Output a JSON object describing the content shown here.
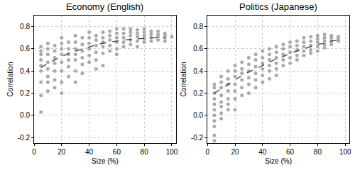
{
  "chart_data": [
    {
      "type": "scatter",
      "title": "Economy (English)",
      "x_label": "Size (%)",
      "y_label": "Correlation",
      "xlim": [
        0,
        103
      ],
      "xticks": [
        0,
        20,
        40,
        60,
        80,
        100
      ],
      "ylim": [
        -0.25,
        0.9
      ],
      "yticks": [
        -0.2,
        {
          "value": 0,
          "label": "0.0"
        },
        0.2,
        0.4,
        0.6,
        0.8
      ],
      "grid": true,
      "series": [
        {
          "type": "scatter",
          "marker": "circle",
          "color": "#aaaaaa",
          "x": [
            5,
            5,
            5,
            5,
            5,
            5,
            5,
            5,
            5,
            10,
            10,
            10,
            10,
            10,
            10,
            10,
            10,
            15,
            15,
            15,
            15,
            15,
            15,
            15,
            20,
            20,
            20,
            20,
            20,
            20,
            20,
            20,
            25,
            25,
            25,
            25,
            25,
            25,
            30,
            30,
            30,
            30,
            30,
            30,
            30,
            35,
            35,
            35,
            35,
            35,
            35,
            40,
            40,
            40,
            40,
            40,
            40,
            45,
            45,
            45,
            45,
            45,
            45,
            50,
            50,
            50,
            50,
            50,
            50,
            55,
            55,
            55,
            55,
            55,
            60,
            60,
            60,
            60,
            60,
            60,
            65,
            65,
            65,
            65,
            65,
            70,
            70,
            70,
            70,
            70,
            75,
            75,
            75,
            75,
            75,
            80,
            80,
            80,
            80,
            80,
            85,
            85,
            85,
            85,
            90,
            90,
            90,
            90,
            95,
            95,
            95,
            95,
            100
          ],
          "values": [
            0.62,
            0.58,
            0.55,
            0.5,
            0.45,
            0.4,
            0.3,
            0.18,
            0.03,
            0.65,
            0.6,
            0.55,
            0.48,
            0.42,
            0.35,
            0.3,
            0.22,
            0.63,
            0.58,
            0.52,
            0.47,
            0.4,
            0.32,
            0.25,
            0.7,
            0.65,
            0.6,
            0.55,
            0.48,
            0.4,
            0.3,
            0.2,
            0.66,
            0.6,
            0.55,
            0.5,
            0.44,
            0.35,
            0.72,
            0.66,
            0.6,
            0.55,
            0.5,
            0.4,
            0.3,
            0.7,
            0.64,
            0.58,
            0.52,
            0.46,
            0.38,
            0.75,
            0.7,
            0.65,
            0.6,
            0.54,
            0.48,
            0.72,
            0.68,
            0.63,
            0.57,
            0.5,
            0.42,
            0.75,
            0.7,
            0.66,
            0.62,
            0.56,
            0.45,
            0.76,
            0.72,
            0.68,
            0.63,
            0.58,
            0.78,
            0.74,
            0.7,
            0.66,
            0.6,
            0.55,
            0.78,
            0.74,
            0.7,
            0.66,
            0.62,
            0.78,
            0.75,
            0.72,
            0.68,
            0.64,
            0.77,
            0.74,
            0.71,
            0.67,
            0.62,
            0.78,
            0.75,
            0.72,
            0.69,
            0.66,
            0.76,
            0.73,
            0.7,
            0.67,
            0.76,
            0.73,
            0.71,
            0.68,
            0.74,
            0.72,
            0.7,
            0.67,
            0.71
          ]
        },
        {
          "type": "line",
          "line_style": "dash",
          "color": "#333333",
          "x": [
            5,
            10,
            15,
            20,
            25,
            30,
            35,
            40,
            45,
            50,
            55,
            60,
            65,
            70,
            75,
            80,
            85,
            90,
            95
          ],
          "values": [
            0.43,
            0.47,
            0.5,
            0.53,
            0.56,
            0.58,
            0.6,
            0.62,
            0.635,
            0.65,
            0.66,
            0.67,
            0.68,
            0.685,
            0.69,
            0.695,
            0.7,
            0.7,
            0.7
          ]
        }
      ]
    },
    {
      "type": "scatter",
      "title": "Politics (Japanese)",
      "x_label": "Size (%)",
      "y_label": "Correlation",
      "xlim": [
        0,
        103
      ],
      "xticks": [
        0,
        20,
        40,
        60,
        80,
        100
      ],
      "ylim": [
        -0.25,
        0.9
      ],
      "yticks": [
        -0.2,
        {
          "value": 0,
          "label": "0.0"
        },
        0.2,
        0.4,
        0.6,
        0.8
      ],
      "grid": true,
      "series": [
        {
          "type": "scatter",
          "marker": "circle",
          "color": "#aaaaaa",
          "x": [
            5,
            5,
            5,
            5,
            5,
            5,
            5,
            5,
            5,
            5,
            5,
            10,
            10,
            10,
            10,
            10,
            10,
            10,
            10,
            15,
            15,
            15,
            15,
            15,
            15,
            15,
            20,
            20,
            20,
            20,
            20,
            20,
            20,
            25,
            25,
            25,
            25,
            25,
            25,
            30,
            30,
            30,
            30,
            30,
            30,
            35,
            35,
            35,
            35,
            35,
            35,
            40,
            40,
            40,
            40,
            40,
            40,
            45,
            45,
            45,
            45,
            45,
            45,
            50,
            50,
            50,
            50,
            50,
            50,
            55,
            55,
            55,
            55,
            55,
            60,
            60,
            60,
            60,
            60,
            65,
            65,
            65,
            65,
            65,
            70,
            70,
            70,
            70,
            70,
            75,
            75,
            75,
            75,
            75,
            80,
            80,
            80,
            80,
            80,
            85,
            85,
            85,
            85,
            85,
            90,
            90,
            90,
            90,
            95,
            95,
            95
          ],
          "values": [
            0.28,
            0.25,
            0.2,
            0.15,
            0.1,
            0.05,
            0.0,
            -0.05,
            -0.1,
            -0.18,
            -0.23,
            0.35,
            0.3,
            0.25,
            0.18,
            0.12,
            0.08,
            0.02,
            -0.03,
            0.4,
            0.33,
            0.28,
            0.22,
            0.15,
            0.1,
            0.05,
            0.45,
            0.4,
            0.35,
            0.28,
            0.22,
            0.15,
            0.05,
            0.48,
            0.42,
            0.38,
            0.32,
            0.25,
            0.18,
            0.52,
            0.46,
            0.4,
            0.34,
            0.28,
            0.2,
            0.55,
            0.5,
            0.44,
            0.38,
            0.32,
            0.25,
            0.58,
            0.52,
            0.47,
            0.42,
            0.36,
            0.3,
            0.6,
            0.55,
            0.5,
            0.45,
            0.4,
            0.33,
            0.62,
            0.57,
            0.52,
            0.47,
            0.42,
            0.36,
            0.64,
            0.6,
            0.55,
            0.5,
            0.45,
            0.66,
            0.62,
            0.57,
            0.52,
            0.47,
            0.67,
            0.63,
            0.59,
            0.54,
            0.5,
            0.7,
            0.66,
            0.62,
            0.58,
            0.54,
            0.71,
            0.67,
            0.63,
            0.59,
            0.56,
            0.72,
            0.69,
            0.66,
            0.62,
            0.58,
            0.73,
            0.7,
            0.67,
            0.64,
            0.61,
            0.72,
            0.7,
            0.67,
            0.64,
            0.71,
            0.69,
            0.67
          ]
        },
        {
          "type": "line",
          "line_style": "dash",
          "color": "#333333",
          "x": [
            5,
            10,
            15,
            20,
            25,
            30,
            35,
            40,
            45,
            50,
            55,
            60,
            65,
            70,
            75,
            80,
            85,
            90,
            95
          ],
          "values": [
            0.2,
            0.24,
            0.28,
            0.32,
            0.36,
            0.39,
            0.42,
            0.45,
            0.48,
            0.51,
            0.53,
            0.56,
            0.58,
            0.6,
            0.62,
            0.64,
            0.65,
            0.67,
            0.68
          ]
        }
      ]
    }
  ]
}
